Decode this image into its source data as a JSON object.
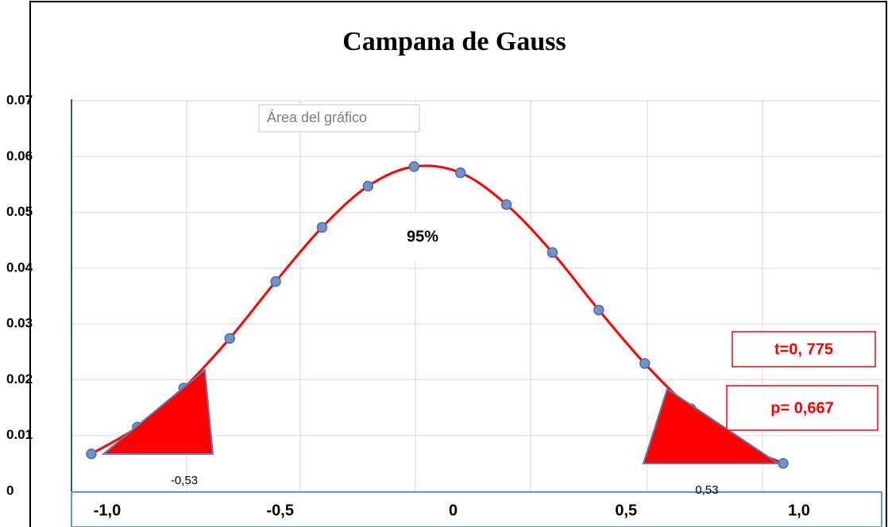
{
  "chart_data": {
    "type": "line",
    "title": "Campana de Gauss",
    "x": [
      -1,
      -0.867,
      -0.733,
      -0.6,
      -0.467,
      -0.333,
      -0.2,
      -0.067,
      0.067,
      0.2,
      0.333,
      0.467,
      0.6,
      0.733,
      0.867,
      1
    ],
    "values": [
      0.0067,
      0.0115,
      0.0185,
      0.0274,
      0.0376,
      0.0473,
      0.0547,
      0.0582,
      0.0571,
      0.0514,
      0.0428,
      0.0325,
      0.0229,
      0.0148,
      0.0087,
      0.005
    ],
    "color": "#ff0000",
    "marker_color": "#7092c8",
    "xlim": [
      -1,
      1
    ],
    "xticks": [
      {
        "value": -1,
        "label": "-1,0"
      },
      {
        "value": -0.5,
        "label": "-0,5"
      },
      0,
      {
        "value": 0.5,
        "label": "0,5"
      },
      {
        "value": 1,
        "label": "1,0"
      }
    ],
    "ylim": [
      0,
      0.07
    ],
    "yticks": [
      0,
      0.01,
      0.02,
      0.03,
      0.04,
      0.05,
      0.06,
      0.07
    ],
    "grid": true,
    "annotations": {
      "tooltip": "Área del gráfico",
      "center": "95%",
      "t": "t=0, 775",
      "p": "p= 0,667",
      "left_crit": "-0,53",
      "right_crit": "0,53"
    }
  }
}
